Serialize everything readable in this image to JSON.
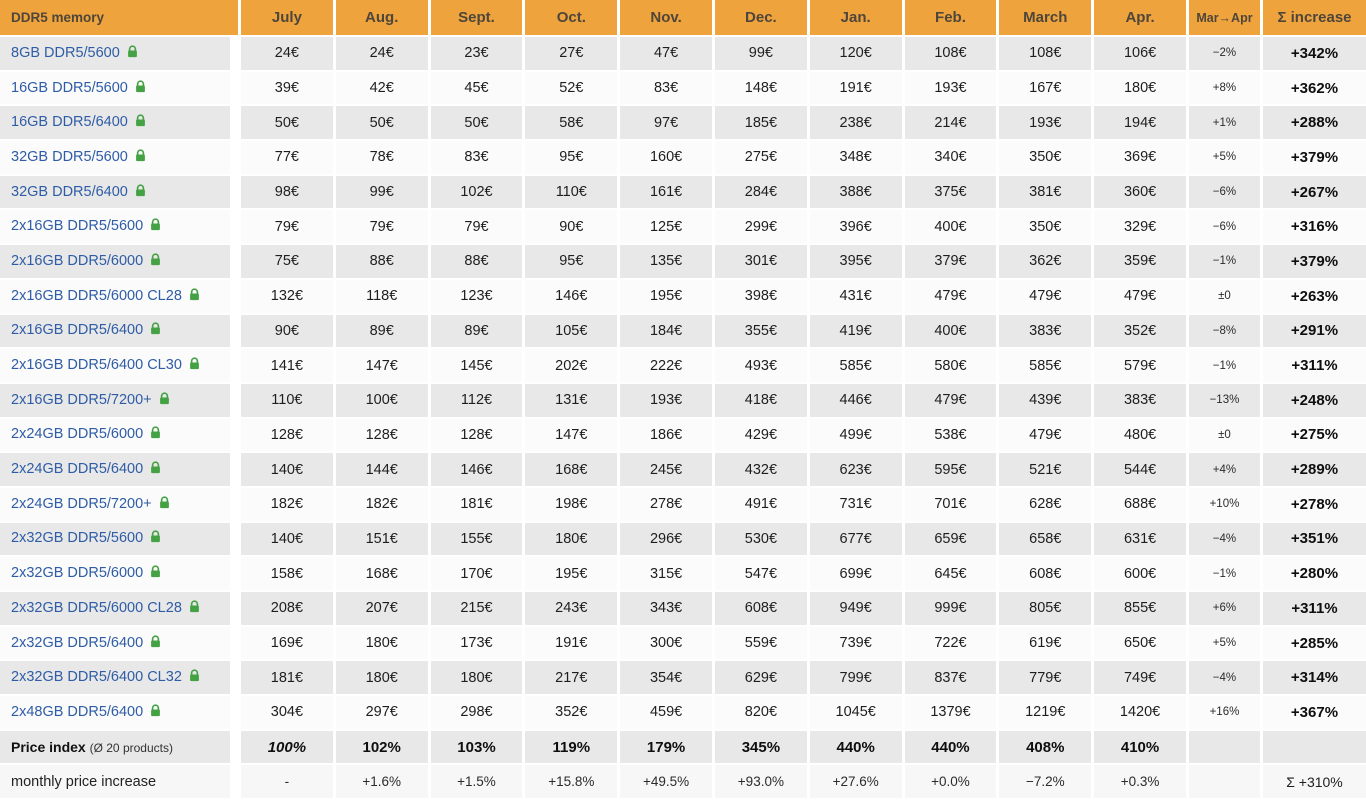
{
  "colors": {
    "header_bg": "#EFA33D",
    "header_text": "#4E463A",
    "row_gray": "#E8E8E8",
    "row_white": "#FBFBFB",
    "link_blue": "#2E5CA6",
    "lock_green": "#44A244"
  },
  "header": {
    "product": "DDR5 memory",
    "months": [
      "July",
      "Aug.",
      "Sept.",
      "Oct.",
      "Nov.",
      "Dec.",
      "Jan.",
      "Feb.",
      "March",
      "Apr."
    ],
    "change": "Mar→Apr",
    "sum": "Σ increase"
  },
  "icons": {
    "lock": "lock-icon"
  },
  "rows": [
    {
      "name": "8GB DDR5/5600",
      "prices": [
        "24€",
        "24€",
        "23€",
        "27€",
        "47€",
        "99€",
        "120€",
        "108€",
        "108€",
        "106€"
      ],
      "change": "−2%",
      "total": "+342%"
    },
    {
      "name": "16GB DDR5/5600",
      "prices": [
        "39€",
        "42€",
        "45€",
        "52€",
        "83€",
        "148€",
        "191€",
        "193€",
        "167€",
        "180€"
      ],
      "change": "+8%",
      "total": "+362%"
    },
    {
      "name": "16GB DDR5/6400",
      "prices": [
        "50€",
        "50€",
        "50€",
        "58€",
        "97€",
        "185€",
        "238€",
        "214€",
        "193€",
        "194€"
      ],
      "change": "+1%",
      "total": "+288%"
    },
    {
      "name": "32GB DDR5/5600",
      "prices": [
        "77€",
        "78€",
        "83€",
        "95€",
        "160€",
        "275€",
        "348€",
        "340€",
        "350€",
        "369€"
      ],
      "change": "+5%",
      "total": "+379%"
    },
    {
      "name": "32GB DDR5/6400",
      "prices": [
        "98€",
        "99€",
        "102€",
        "110€",
        "161€",
        "284€",
        "388€",
        "375€",
        "381€",
        "360€"
      ],
      "change": "−6%",
      "total": "+267%"
    },
    {
      "name": "2x16GB DDR5/5600",
      "prices": [
        "79€",
        "79€",
        "79€",
        "90€",
        "125€",
        "299€",
        "396€",
        "400€",
        "350€",
        "329€"
      ],
      "change": "−6%",
      "total": "+316%"
    },
    {
      "name": "2x16GB DDR5/6000",
      "prices": [
        "75€",
        "88€",
        "88€",
        "95€",
        "135€",
        "301€",
        "395€",
        "379€",
        "362€",
        "359€"
      ],
      "change": "−1%",
      "total": "+379%"
    },
    {
      "name": "2x16GB DDR5/6000 CL28",
      "prices": [
        "132€",
        "118€",
        "123€",
        "146€",
        "195€",
        "398€",
        "431€",
        "479€",
        "479€",
        "479€"
      ],
      "change": "±0",
      "total": "+263%"
    },
    {
      "name": "2x16GB DDR5/6400",
      "prices": [
        "90€",
        "89€",
        "89€",
        "105€",
        "184€",
        "355€",
        "419€",
        "400€",
        "383€",
        "352€"
      ],
      "change": "−8%",
      "total": "+291%"
    },
    {
      "name": "2x16GB DDR5/6400 CL30",
      "prices": [
        "141€",
        "147€",
        "145€",
        "202€",
        "222€",
        "493€",
        "585€",
        "580€",
        "585€",
        "579€"
      ],
      "change": "−1%",
      "total": "+311%"
    },
    {
      "name": "2x16GB DDR5/7200+",
      "prices": [
        "110€",
        "100€",
        "112€",
        "131€",
        "193€",
        "418€",
        "446€",
        "479€",
        "439€",
        "383€"
      ],
      "change": "−13%",
      "total": "+248%"
    },
    {
      "name": "2x24GB DDR5/6000",
      "prices": [
        "128€",
        "128€",
        "128€",
        "147€",
        "186€",
        "429€",
        "499€",
        "538€",
        "479€",
        "480€"
      ],
      "change": "±0",
      "total": "+275%"
    },
    {
      "name": "2x24GB DDR5/6400",
      "prices": [
        "140€",
        "144€",
        "146€",
        "168€",
        "245€",
        "432€",
        "623€",
        "595€",
        "521€",
        "544€"
      ],
      "change": "+4%",
      "total": "+289%"
    },
    {
      "name": "2x24GB DDR5/7200+",
      "prices": [
        "182€",
        "182€",
        "181€",
        "198€",
        "278€",
        "491€",
        "731€",
        "701€",
        "628€",
        "688€"
      ],
      "change": "+10%",
      "total": "+278%"
    },
    {
      "name": "2x32GB DDR5/5600",
      "prices": [
        "140€",
        "151€",
        "155€",
        "180€",
        "296€",
        "530€",
        "677€",
        "659€",
        "658€",
        "631€"
      ],
      "change": "−4%",
      "total": "+351%"
    },
    {
      "name": "2x32GB DDR5/6000",
      "prices": [
        "158€",
        "168€",
        "170€",
        "195€",
        "315€",
        "547€",
        "699€",
        "645€",
        "608€",
        "600€"
      ],
      "change": "−1%",
      "total": "+280%"
    },
    {
      "name": "2x32GB DDR5/6000 CL28",
      "prices": [
        "208€",
        "207€",
        "215€",
        "243€",
        "343€",
        "608€",
        "949€",
        "999€",
        "805€",
        "855€"
      ],
      "change": "+6%",
      "total": "+311%"
    },
    {
      "name": "2x32GB DDR5/6400",
      "prices": [
        "169€",
        "180€",
        "173€",
        "191€",
        "300€",
        "559€",
        "739€",
        "722€",
        "619€",
        "650€"
      ],
      "change": "+5%",
      "total": "+285%"
    },
    {
      "name": "2x32GB DDR5/6400 CL32",
      "prices": [
        "181€",
        "180€",
        "180€",
        "217€",
        "354€",
        "629€",
        "799€",
        "837€",
        "779€",
        "749€"
      ],
      "change": "−4%",
      "total": "+314%"
    },
    {
      "name": "2x48GB DDR5/6400",
      "prices": [
        "304€",
        "297€",
        "298€",
        "352€",
        "459€",
        "820€",
        "1045€",
        "1379€",
        "1219€",
        "1420€"
      ],
      "change": "+16%",
      "total": "+367%"
    }
  ],
  "price_index": {
    "label": "Price index",
    "sublabel": "(Ø 20 products)",
    "values": [
      "100%",
      "102%",
      "103%",
      "119%",
      "179%",
      "345%",
      "440%",
      "440%",
      "408%",
      "410%"
    ]
  },
  "monthly": {
    "label": "monthly price increase",
    "values": [
      "-",
      "+1.6%",
      "+1.5%",
      "+15.8%",
      "+49.5%",
      "+93.0%",
      "+27.6%",
      "+0.0%",
      "−7.2%",
      "+0.3%"
    ],
    "total": "Σ +310%"
  }
}
